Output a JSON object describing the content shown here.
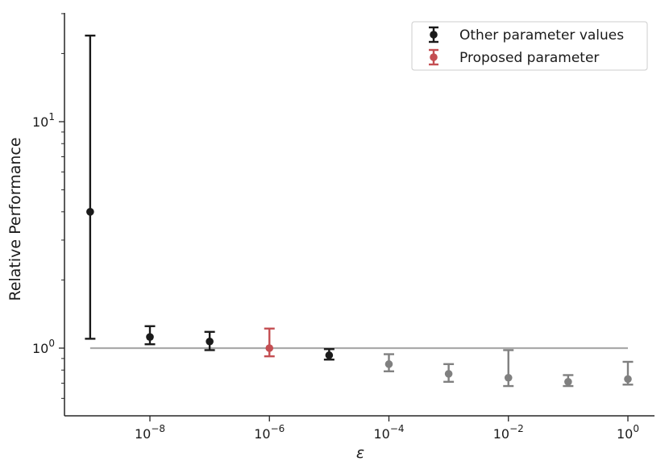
{
  "chart_data": {
    "type": "scatter",
    "subtype": "errorbar",
    "title": "",
    "xlabel": "ε",
    "ylabel": "Relative Performance",
    "xscale": "log",
    "yscale": "log",
    "xlim": [
      1e-09,
      1
    ],
    "ylim": [
      0.5,
      30
    ],
    "xticks": [
      {
        "value": 1e-08,
        "base": "10",
        "exp": "−8"
      },
      {
        "value": 1e-06,
        "base": "10",
        "exp": "−6"
      },
      {
        "value": 0.0001,
        "base": "10",
        "exp": "−4"
      },
      {
        "value": 0.01,
        "base": "10",
        "exp": "−2"
      },
      {
        "value": 1,
        "base": "10",
        "exp": "0"
      }
    ],
    "yticks": [
      {
        "value": 1,
        "base": "10",
        "exp": "0"
      },
      {
        "value": 10,
        "base": "10",
        "exp": "1"
      }
    ],
    "reference_line": {
      "y": 1.0,
      "x_from": 1e-09,
      "x_to": 1,
      "color": "#aaaaaa"
    },
    "grid": false,
    "legend_position": "top-right",
    "legend": [
      {
        "label": "Other parameter values",
        "color": "#1a1a1a"
      },
      {
        "label": "Proposed parameter",
        "color": "#c44e52"
      }
    ],
    "series": [
      {
        "name": "Other parameter values",
        "color": "#1a1a1a",
        "points": [
          {
            "x": 1e-09,
            "y": 4.0,
            "low": 1.1,
            "high": 24.0
          },
          {
            "x": 1e-08,
            "y": 1.12,
            "low": 1.04,
            "high": 1.25
          },
          {
            "x": 1e-07,
            "y": 1.07,
            "low": 0.98,
            "high": 1.18
          },
          {
            "x": 1e-05,
            "y": 0.93,
            "low": 0.89,
            "high": 0.99
          }
        ]
      },
      {
        "name": "Proposed parameter",
        "color": "#c44e52",
        "points": [
          {
            "x": 1e-06,
            "y": 1.0,
            "low": 0.92,
            "high": 1.22
          }
        ]
      },
      {
        "name": "",
        "color": "#808080",
        "points": [
          {
            "x": 0.0001,
            "y": 0.85,
            "low": 0.79,
            "high": 0.94
          },
          {
            "x": 0.001,
            "y": 0.77,
            "low": 0.71,
            "high": 0.85
          },
          {
            "x": 0.01,
            "y": 0.74,
            "low": 0.68,
            "high": 0.98
          },
          {
            "x": 0.1,
            "y": 0.71,
            "low": 0.68,
            "high": 0.76
          },
          {
            "x": 1,
            "y": 0.73,
            "low": 0.69,
            "high": 0.87
          }
        ]
      }
    ]
  }
}
